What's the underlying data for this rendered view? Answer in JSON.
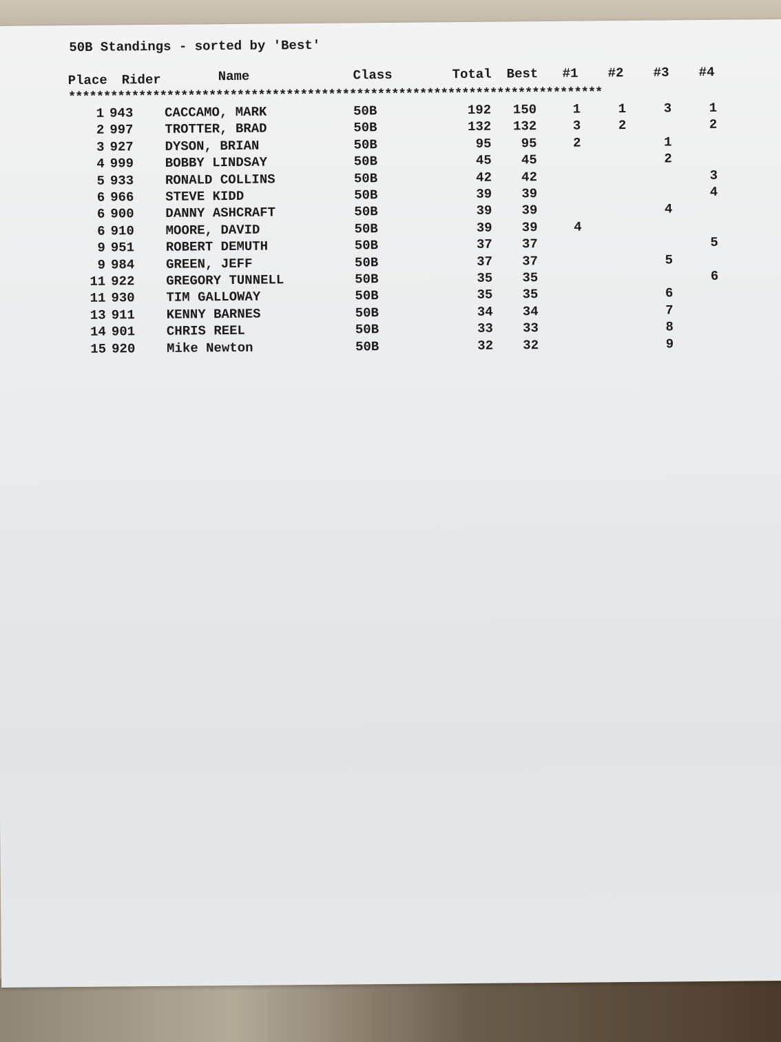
{
  "title": "50B Standings - sorted by 'Best'",
  "headers": {
    "place": "Place",
    "rider": "Rider",
    "name": "Name",
    "class": "Class",
    "total": "Total",
    "best": "Best",
    "r1": "#1",
    "r2": "#2",
    "r3": "#3",
    "r4": "#4"
  },
  "separator": "****************************************************************************",
  "rows": [
    {
      "place": "1",
      "rider": "943",
      "name": "CACCAMO, MARK",
      "class": "50B",
      "total": "192",
      "best": "150",
      "r1": "1",
      "r2": "1",
      "r3": "3",
      "r4": "1"
    },
    {
      "place": "2",
      "rider": "997",
      "name": "TROTTER, BRAD",
      "class": "50B",
      "total": "132",
      "best": "132",
      "r1": "3",
      "r2": "2",
      "r3": "",
      "r4": "2"
    },
    {
      "place": "3",
      "rider": "927",
      "name": "DYSON, BRIAN",
      "class": "50B",
      "total": "95",
      "best": "95",
      "r1": "2",
      "r2": "",
      "r3": "1",
      "r4": ""
    },
    {
      "place": "4",
      "rider": "999",
      "name": "BOBBY LINDSAY",
      "class": "50B",
      "total": "45",
      "best": "45",
      "r1": "",
      "r2": "",
      "r3": "2",
      "r4": ""
    },
    {
      "place": "5",
      "rider": "933",
      "name": "RONALD COLLINS",
      "class": "50B",
      "total": "42",
      "best": "42",
      "r1": "",
      "r2": "",
      "r3": "",
      "r4": "3"
    },
    {
      "place": "6",
      "rider": "966",
      "name": "STEVE KIDD",
      "class": "50B",
      "total": "39",
      "best": "39",
      "r1": "",
      "r2": "",
      "r3": "",
      "r4": "4"
    },
    {
      "place": "6",
      "rider": "900",
      "name": "DANNY ASHCRAFT",
      "class": "50B",
      "total": "39",
      "best": "39",
      "r1": "",
      "r2": "",
      "r3": "4",
      "r4": ""
    },
    {
      "place": "6",
      "rider": "910",
      "name": "MOORE, DAVID",
      "class": "50B",
      "total": "39",
      "best": "39",
      "r1": "4",
      "r2": "",
      "r3": "",
      "r4": ""
    },
    {
      "place": "9",
      "rider": "951",
      "name": "ROBERT DEMUTH",
      "class": "50B",
      "total": "37",
      "best": "37",
      "r1": "",
      "r2": "",
      "r3": "",
      "r4": "5"
    },
    {
      "place": "9",
      "rider": "984",
      "name": "GREEN, JEFF",
      "class": "50B",
      "total": "37",
      "best": "37",
      "r1": "",
      "r2": "",
      "r3": "5",
      "r4": ""
    },
    {
      "place": "11",
      "rider": "922",
      "name": "GREGORY TUNNELL",
      "class": "50B",
      "total": "35",
      "best": "35",
      "r1": "",
      "r2": "",
      "r3": "",
      "r4": "6"
    },
    {
      "place": "11",
      "rider": "930",
      "name": "TIM GALLOWAY",
      "class": "50B",
      "total": "35",
      "best": "35",
      "r1": "",
      "r2": "",
      "r3": "6",
      "r4": ""
    },
    {
      "place": "13",
      "rider": "911",
      "name": "KENNY BARNES",
      "class": "50B",
      "total": "34",
      "best": "34",
      "r1": "",
      "r2": "",
      "r3": "7",
      "r4": ""
    },
    {
      "place": "14",
      "rider": "901",
      "name": "CHRIS REEL",
      "class": "50B",
      "total": "33",
      "best": "33",
      "r1": "",
      "r2": "",
      "r3": "8",
      "r4": ""
    },
    {
      "place": "15",
      "rider": "920",
      "name": "Mike Newton",
      "class": "50B",
      "total": "32",
      "best": "32",
      "r1": "",
      "r2": "",
      "r3": "9",
      "r4": ""
    }
  ]
}
